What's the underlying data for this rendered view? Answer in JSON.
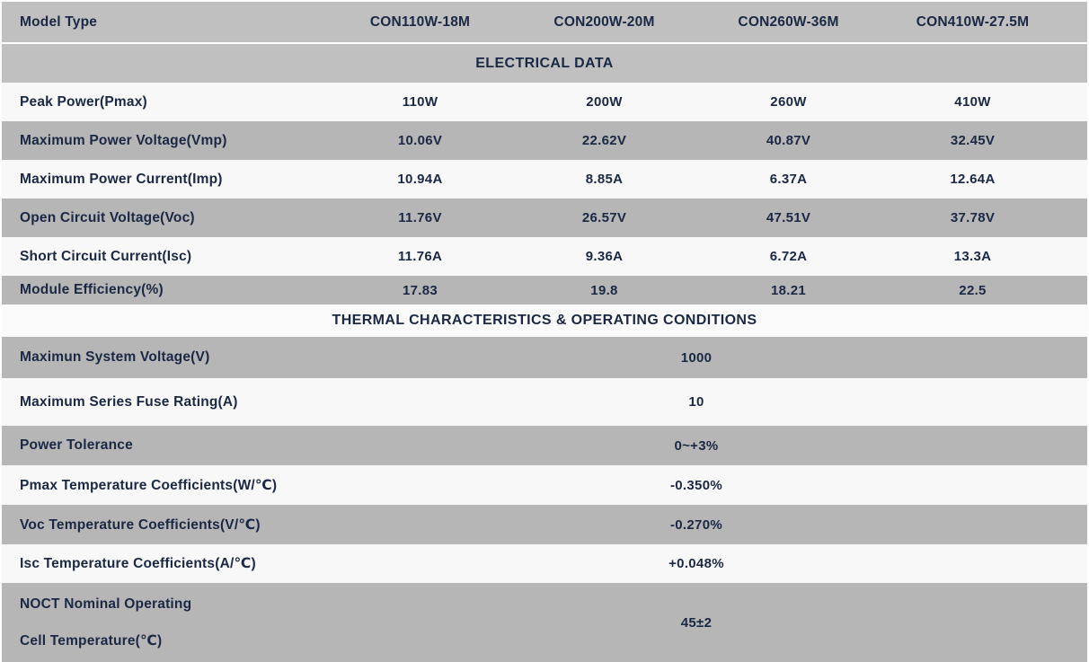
{
  "header": {
    "label": "Model Type",
    "columns": [
      "CON110W-18M",
      "CON200W-20M",
      "CON260W-36M",
      "CON410W-27.5M"
    ]
  },
  "sections": {
    "electrical": {
      "title": "ELECTRICAL DATA",
      "rows": [
        {
          "label": "Peak Power(Pmax)",
          "values": [
            "110W",
            "200W",
            "260W",
            "410W"
          ]
        },
        {
          "label": "Maximum Power Voltage(Vmp)",
          "values": [
            "10.06V",
            "22.62V",
            "40.87V",
            "32.45V"
          ]
        },
        {
          "label": "Maximum Power Current(Imp)",
          "values": [
            "10.94A",
            "8.85A",
            "6.37A",
            "12.64A"
          ]
        },
        {
          "label": "Open Circuit Voltage(Voc)",
          "values": [
            "11.76V",
            "26.57V",
            "47.51V",
            "37.78V"
          ]
        },
        {
          "label": "Short Circuit Current(Isc)",
          "values": [
            "11.76A",
            "9.36A",
            "6.72A",
            "13.3A"
          ]
        },
        {
          "label": "Module Efficiency(%)",
          "values": [
            "17.83",
            "19.8",
            "18.21",
            "22.5"
          ]
        }
      ]
    },
    "thermal": {
      "title": "THERMAL CHARACTERISTICS & OPERATING CONDITIONS",
      "rows": [
        {
          "label": "Maximun System Voltage(V)",
          "value": "1000"
        },
        {
          "label": "Maximum Series Fuse Rating(A)",
          "value": "10"
        },
        {
          "label": "Power Tolerance",
          "value": "0~+3%"
        },
        {
          "label": "Pmax Temperature Coefficients(W/℃)",
          "value": "-0.350%"
        },
        {
          "label": "Voc Temperature Coefficients(V/℃)",
          "value": "-0.270%"
        },
        {
          "label": "Isc Temperature Coefficients(A/℃)",
          "value": "+0.048%"
        },
        {
          "label": "NOCT Nominal Operating",
          "label_line2": "Cell Temperature(℃)",
          "value": "45±2"
        }
      ]
    }
  },
  "colors": {
    "header_gray": "#c0c0c0",
    "row_gray": "#b6b6b6",
    "row_light": "#f8f8f8",
    "text_navy": "#1a2844"
  }
}
